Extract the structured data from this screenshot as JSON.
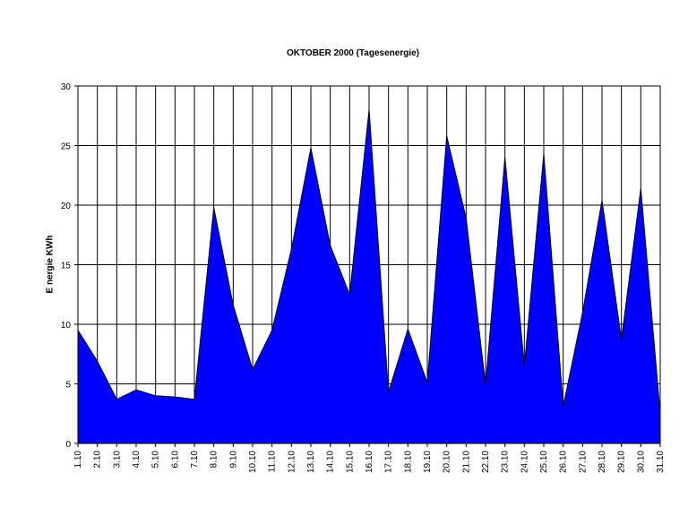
{
  "chart_data": {
    "type": "area",
    "title": "OKTOBER 2000 (Tagesenergie)",
    "xlabel": "",
    "ylabel": "E nergie KWh",
    "ylim": [
      0,
      30
    ],
    "yticks": [
      0,
      5,
      10,
      15,
      20,
      25,
      30
    ],
    "grid": true,
    "legend": "none",
    "fill_color": "#0000FF",
    "categories": [
      "1.10",
      "2.10",
      "3.10",
      "4.10",
      "5.10",
      "6.10",
      "7.10",
      "8.10",
      "9.10",
      "10.10",
      "11.10",
      "12.10",
      "13.10",
      "14.10",
      "15.10",
      "16.10",
      "17.10",
      "18.10",
      "19.10",
      "20.10",
      "21.10",
      "22.10",
      "23.10",
      "24.10",
      "25.10",
      "26.10",
      "27.10",
      "28.10",
      "29.10",
      "30.10",
      "31.10"
    ],
    "values": [
      9.5,
      6.9,
      3.7,
      4.5,
      4.0,
      3.9,
      3.7,
      19.8,
      11.6,
      6.2,
      9.5,
      16.3,
      24.8,
      16.6,
      12.5,
      28.0,
      4.3,
      9.6,
      5.1,
      25.8,
      18.9,
      4.9,
      24.0,
      6.5,
      24.3,
      3.1,
      11.0,
      20.4,
      8.7,
      21.4,
      2.5
    ]
  }
}
